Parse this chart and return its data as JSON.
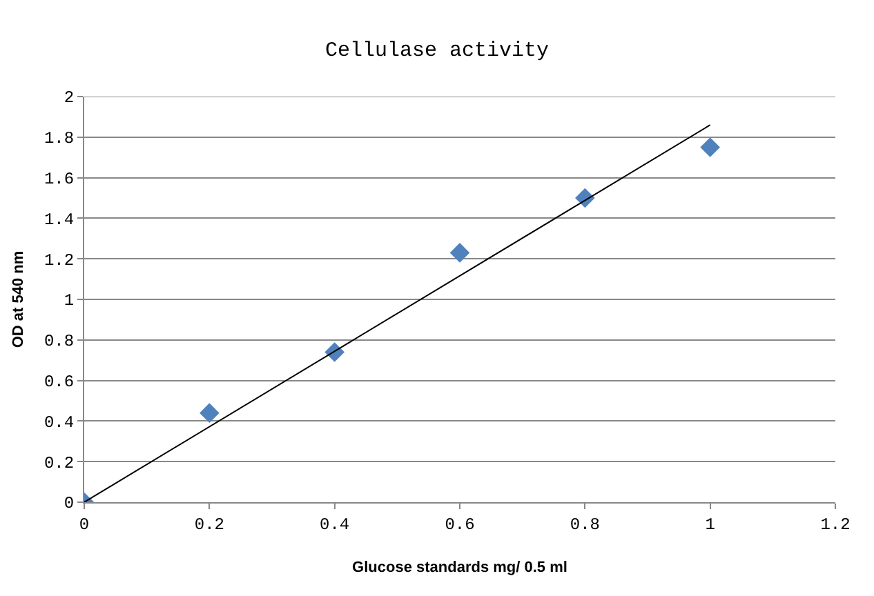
{
  "chart_data": {
    "type": "scatter",
    "title": "Cellulase activity",
    "xlabel": "Glucose standards mg/ 0.5 ml",
    "ylabel": "OD at 540 nm",
    "x": [
      0,
      0.2,
      0.4,
      0.6,
      0.8,
      1
    ],
    "series": [
      {
        "color": "#4f81bd",
        "values": [
          0,
          0.44,
          0.74,
          1.23,
          1.5,
          1.75
        ],
        "marker": "diamond"
      },
      {
        "type": "line",
        "color": "#000000",
        "x": [
          0,
          1
        ],
        "values": [
          0,
          1.86
        ],
        "marker": "none",
        "line_style": "solid"
      }
    ],
    "xlim": [
      0,
      1.2
    ],
    "xticks": [
      0,
      0.2,
      0.4,
      0.6,
      0.8,
      1,
      1.2
    ],
    "ylim": [
      0,
      2
    ],
    "yticks": [
      0,
      0.2,
      0.4,
      0.6,
      0.8,
      1,
      1.2,
      1.4,
      1.6,
      1.8,
      2
    ],
    "grid": "y"
  }
}
